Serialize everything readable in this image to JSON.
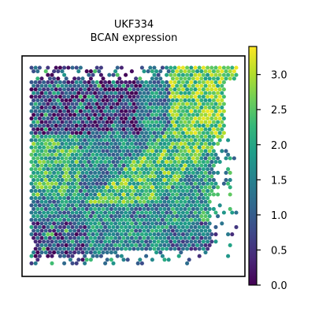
{
  "chart_data": {
    "type": "heatmap",
    "title_line1": "UKF334",
    "title_line2": "BCAN expression",
    "xlabel": "",
    "ylabel": "",
    "grid": false,
    "colorbar": {
      "colormap": "viridis",
      "range": [
        0.0,
        3.4
      ],
      "ticks": [
        0.0,
        0.5,
        1.0,
        1.5,
        2.0,
        2.5,
        3.0
      ],
      "tick_labels": [
        "0.0",
        "0.5",
        "1.0",
        "1.5",
        "2.0",
        "2.5",
        "3.0"
      ],
      "placement": "right"
    },
    "tissue_regions": [
      {
        "region": "upper-left",
        "level": 0.6
      },
      {
        "region": "upper-right",
        "level": 2.6
      },
      {
        "region": "diagonal-band",
        "level": 2.4
      },
      {
        "region": "left-middle",
        "level": 2.2
      },
      {
        "region": "center",
        "level": 1.5
      },
      {
        "region": "right-middle",
        "level": 1.8
      },
      {
        "region": "bottom-left",
        "level": 0.7
      },
      {
        "region": "bottom-center",
        "level": 1.6
      },
      {
        "region": "bottom-right",
        "level": 1.2
      }
    ],
    "colors": {
      "viridis": [
        "#440154",
        "#482878",
        "#3e4989",
        "#31688e",
        "#26828e",
        "#1f9e89",
        "#35b779",
        "#6ece58",
        "#b5de2b",
        "#fde725"
      ]
    }
  }
}
